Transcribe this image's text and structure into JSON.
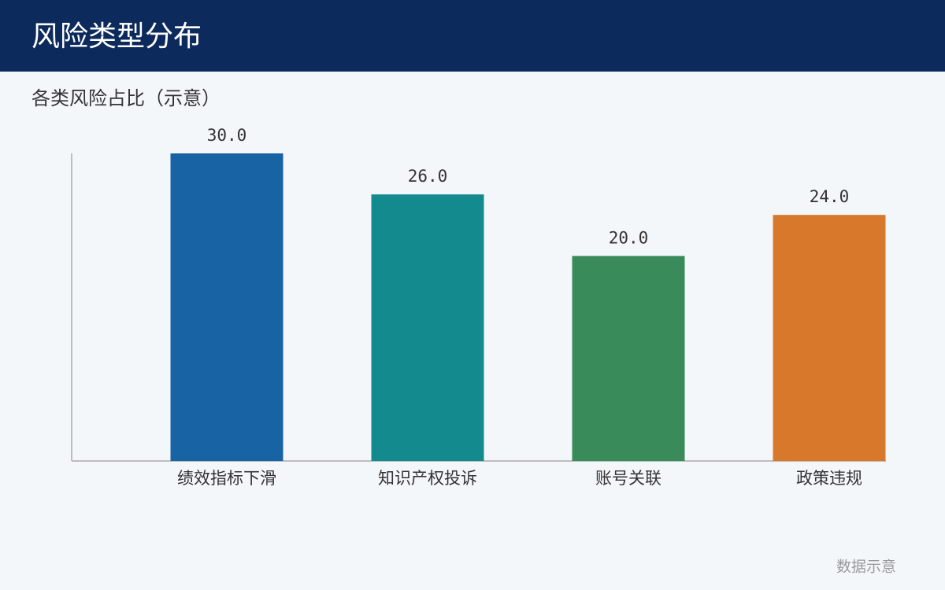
{
  "chart_data": {
    "type": "bar",
    "title": "风险类型分布",
    "subtitle": "各类风险占比（示意）",
    "categories": [
      "绩效指标下滑",
      "知识产权投诉",
      "账号关联",
      "政策违规"
    ],
    "values": [
      30,
      26,
      20,
      24
    ],
    "value_labels": [
      "30.0",
      "26.0",
      "20.0",
      "24.0"
    ],
    "colors": [
      "#1763a3",
      "#138b8e",
      "#3a8b5a",
      "#d7782a"
    ],
    "ylim": [
      0,
      30
    ],
    "note": "数据示意"
  }
}
